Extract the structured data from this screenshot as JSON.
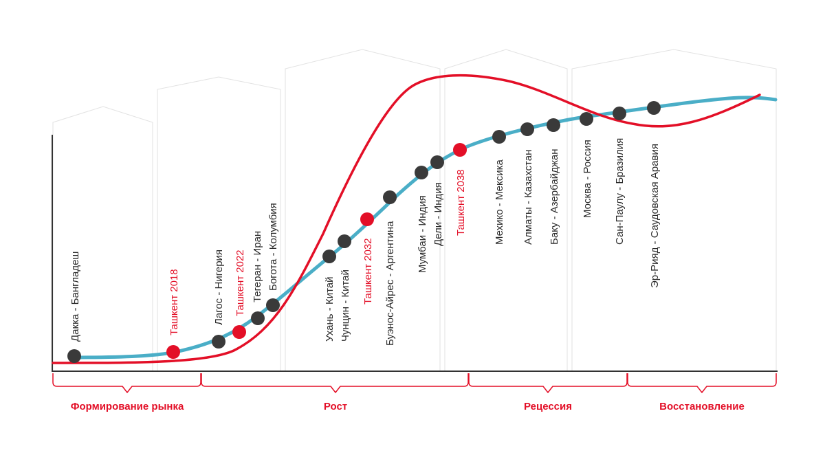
{
  "colors": {
    "red": "#e30f27",
    "teal": "#4aaec7",
    "dot": "#3a3a3a",
    "axis": "#333333",
    "panel": "#e2e2e2"
  },
  "cities": [
    {
      "label": "Дакка - Бангладеш",
      "highlight": false
    },
    {
      "label": "Ташкент 2018",
      "highlight": true
    },
    {
      "label": "Лагос - Нигерия",
      "highlight": false
    },
    {
      "label": "Ташкент 2022",
      "highlight": true
    },
    {
      "label": "Тегеран - Иран",
      "highlight": false
    },
    {
      "label": "Богота - Колумбия",
      "highlight": false
    },
    {
      "label": "Ухань - Китай",
      "highlight": false
    },
    {
      "label": "Чунцин - Китай",
      "highlight": false
    },
    {
      "label": "Ташкент 2032",
      "highlight": true
    },
    {
      "label": "Буэнос-Айрес - Аргентина",
      "highlight": false
    },
    {
      "label": "Мумбаи - Индия",
      "highlight": false
    },
    {
      "label": "Дели - Индия",
      "highlight": false
    },
    {
      "label": "Ташкент 2038",
      "highlight": true
    },
    {
      "label": "Мехико - Мексика",
      "highlight": false
    },
    {
      "label": "Алматы - Казахстан",
      "highlight": false
    },
    {
      "label": "Баку - Азербайджан",
      "highlight": false
    },
    {
      "label": "Москва - Россия",
      "highlight": false
    },
    {
      "label": "Сан-Паулу - Бразилия",
      "highlight": false
    },
    {
      "label": "Эр-Рияд - Саудовская Аравия",
      "highlight": false
    }
  ],
  "phases": [
    {
      "label": "Формирование рынка"
    },
    {
      "label": "Рост"
    },
    {
      "label": "Рецессия"
    },
    {
      "label": "Восстановление"
    }
  ]
}
